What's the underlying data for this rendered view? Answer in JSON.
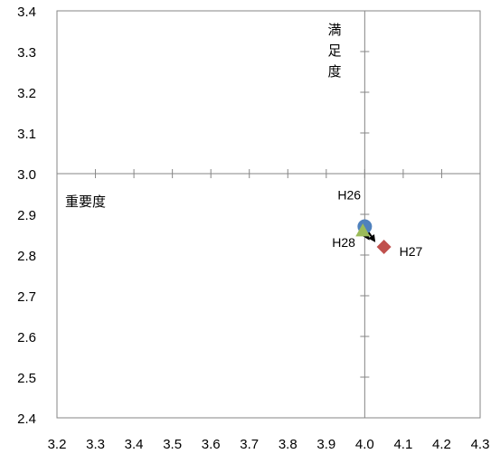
{
  "chart_data": {
    "type": "scatter",
    "title": "",
    "xlabel": "重要度",
    "ylabel": "満足度",
    "xlim": [
      3.2,
      4.3
    ],
    "ylim": [
      2.4,
      3.4
    ],
    "x_ticks": [
      "3.2",
      "3.3",
      "3.4",
      "3.5",
      "3.6",
      "3.7",
      "3.8",
      "3.9",
      "4.0",
      "4.1",
      "4.2",
      "4.3"
    ],
    "y_ticks": [
      "2.4",
      "2.5",
      "2.6",
      "2.7",
      "2.8",
      "2.9",
      "3.0",
      "3.1",
      "3.2",
      "3.3",
      "3.4"
    ],
    "crosshair": {
      "x": 4.0,
      "y": 3.0
    },
    "grid": false,
    "points": [
      {
        "label": "H26",
        "x": 4.0,
        "y": 2.87,
        "marker": "circle",
        "color": "#4f81bd"
      },
      {
        "label": "H27",
        "x": 4.05,
        "y": 2.82,
        "marker": "diamond",
        "color": "#c0504d"
      },
      {
        "label": "H28",
        "x": 3.995,
        "y": 2.86,
        "marker": "triangle",
        "color": "#9bbb59"
      }
    ],
    "arrows": [
      {
        "from": [
          4.0,
          2.87
        ],
        "to": [
          4.025,
          2.835
        ]
      },
      {
        "from": [
          4.0,
          2.855
        ],
        "to": [
          4.01,
          2.84
        ]
      }
    ]
  }
}
